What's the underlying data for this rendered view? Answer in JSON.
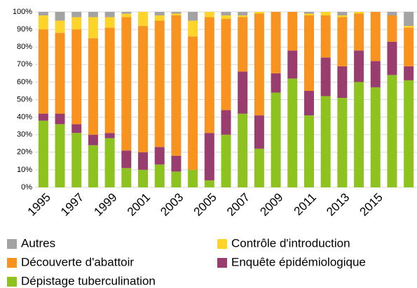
{
  "chart_data": {
    "type": "stacked_bar",
    "categories": [
      "1995",
      null,
      "1997",
      null,
      "1999",
      null,
      "2001",
      null,
      "2003",
      null,
      "2005",
      null,
      "2007",
      null,
      "2009",
      null,
      "2011",
      null,
      "2013",
      null,
      "2015",
      null,
      null
    ],
    "series": [
      {
        "name": "Dépistage tuberculination",
        "color": "#8dc21f",
        "values": [
          38,
          36,
          31,
          24,
          28,
          11,
          10,
          13,
          9,
          10,
          4,
          30,
          42,
          22,
          54,
          62,
          41,
          52,
          51,
          60,
          57,
          64,
          61
        ]
      },
      {
        "name": "Enquête épidémiologique",
        "color": "#993d6e",
        "values": [
          4,
          6,
          5,
          6,
          3,
          10,
          10,
          10,
          9,
          0,
          27,
          14,
          24,
          19,
          11,
          16,
          14,
          22,
          18,
          18,
          15,
          19,
          8
        ]
      },
      {
        "name": "Découverte d'abattoir",
        "color": "#f7931e",
        "values": [
          48,
          46,
          54,
          55,
          60,
          76,
          72,
          72,
          80,
          76,
          66,
          52,
          31,
          58,
          35,
          22,
          43,
          24,
          28,
          21,
          28,
          15,
          22
        ]
      },
      {
        "name": "Contrôle d'introduction",
        "color": "#ffd42a",
        "values": [
          8,
          7,
          7,
          12,
          6,
          2,
          8,
          3,
          1,
          9,
          3,
          2,
          1,
          1,
          0,
          0,
          1,
          2,
          1,
          1,
          0,
          0,
          1
        ]
      },
      {
        "name": "Autres",
        "color": "#a3a3a3",
        "values": [
          2,
          5,
          3,
          3,
          3,
          1,
          0,
          2,
          1,
          5,
          0,
          2,
          2,
          0,
          0,
          0,
          1,
          0,
          2,
          0,
          0,
          2,
          8
        ]
      }
    ],
    "ylim": [
      0,
      100
    ],
    "yticks": [
      {
        "value": 0,
        "label": "0%"
      },
      {
        "value": 10,
        "label": "10%"
      },
      {
        "value": 20,
        "label": "20%"
      },
      {
        "value": 30,
        "label": "30%"
      },
      {
        "value": 40,
        "label": "40%"
      },
      {
        "value": 50,
        "label": "50%"
      },
      {
        "value": 60,
        "label": "60%"
      },
      {
        "value": 70,
        "label": "70%"
      },
      {
        "value": 80,
        "label": "80%"
      },
      {
        "value": 90,
        "label": "90%"
      },
      {
        "value": 100,
        "label": "100%"
      }
    ],
    "grid": true
  }
}
